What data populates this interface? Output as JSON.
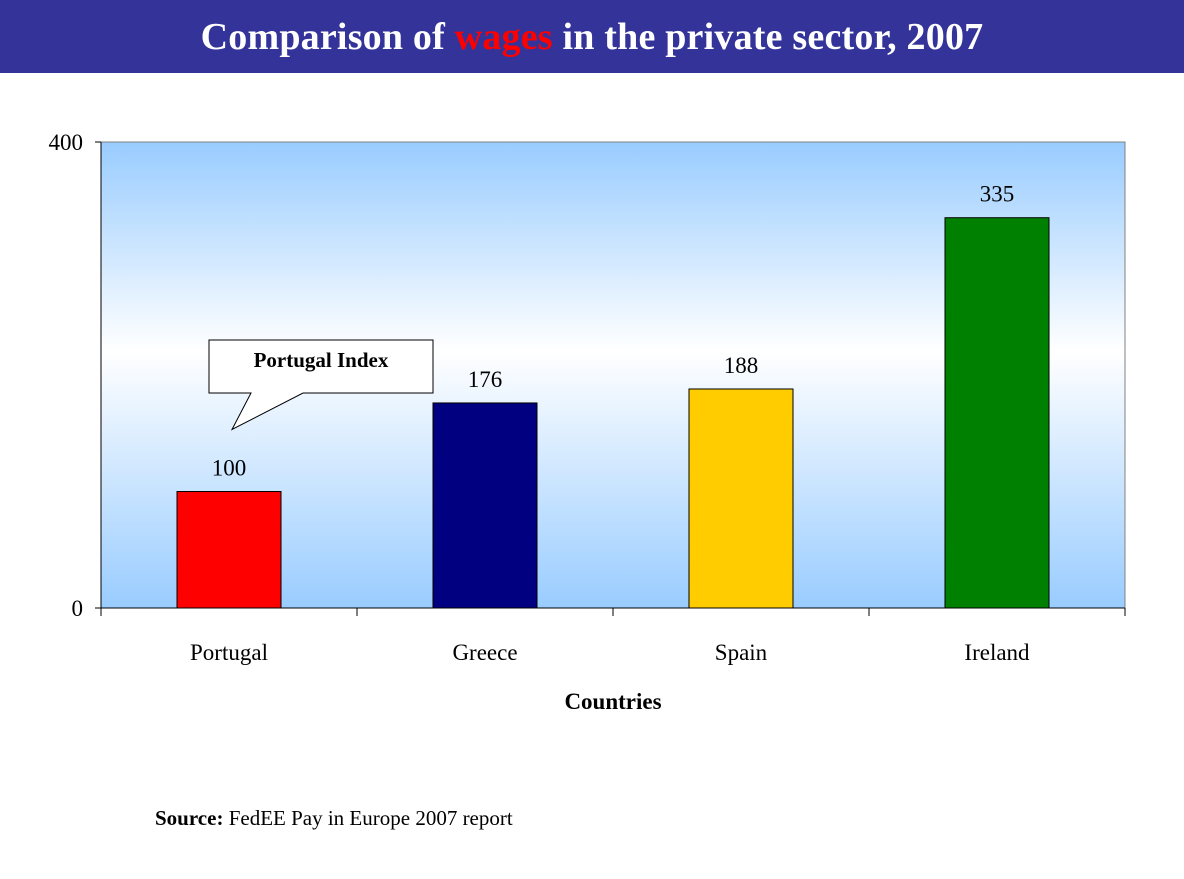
{
  "header": {
    "title_part1": "Comparison of ",
    "title_highlight": "wages",
    "title_part2": " in the private sector, 2007",
    "bg_color": "#333399",
    "highlight_color": "#ff0000"
  },
  "chart_data": {
    "type": "bar",
    "categories": [
      "Portugal",
      "Greece",
      "Spain",
      "Ireland"
    ],
    "values": [
      100,
      176,
      188,
      335
    ],
    "colors": [
      "#ff0000",
      "#000080",
      "#ffcc00",
      "#008000"
    ],
    "title": "Comparison of wages in the private sector, 2007",
    "xlabel": "Countries",
    "ylabel": "",
    "ylim": [
      0,
      400
    ],
    "yticks": [
      0,
      400
    ],
    "data_labels": [
      "100",
      "176",
      "188",
      "335"
    ],
    "callout": {
      "text": "Portugal Index",
      "target": "Portugal"
    },
    "plot_background": "gradient light blue to white"
  },
  "source": {
    "label": "Source:",
    "text": " FedEE Pay in Europe 2007 report"
  }
}
